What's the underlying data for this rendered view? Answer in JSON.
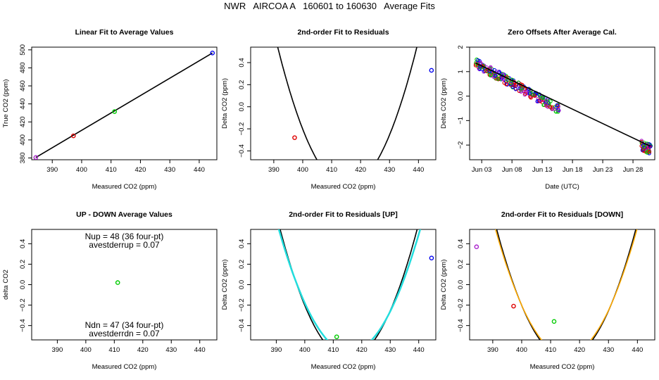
{
  "page_title": "NWR   AIRCOA A   160601 to 160630   Average Fits",
  "colors": {
    "black": "#000000",
    "red": "#dd0000",
    "green": "#00cc00",
    "blue": "#0000ee",
    "purple": "#aa22cc",
    "cyan": "#22dddd",
    "orange": "#ffaa00"
  },
  "chart_data": [
    {
      "id": "p1",
      "type": "scatter",
      "title": "Linear Fit to Average Values",
      "xlabel": "Measured CO2 (ppm)",
      "ylabel": "True CO2 (ppm)",
      "xlim": [
        383,
        446
      ],
      "ylim": [
        378,
        503
      ],
      "xticks": [
        390,
        400,
        410,
        420,
        430,
        440
      ],
      "yticks": [
        380,
        400,
        420,
        440,
        460,
        480,
        500
      ],
      "points": [
        {
          "x": 384.4,
          "y": 380.5,
          "color": "purple"
        },
        {
          "x": 397.2,
          "y": 404.5,
          "color": "red"
        },
        {
          "x": 411.2,
          "y": 431.5,
          "color": "green"
        },
        {
          "x": 444.5,
          "y": 496.5,
          "color": "blue"
        }
      ],
      "lines": [
        {
          "color": "black",
          "points": [
            [
              384.4,
              380.5
            ],
            [
              444.5,
              496.5
            ]
          ]
        }
      ]
    },
    {
      "id": "p2",
      "type": "scatter",
      "title": "2nd-order Fit to Residuals",
      "xlabel": "Measured CO2 (ppm)",
      "ylabel": "Delta CO2 (ppm)",
      "xlim": [
        382,
        446
      ],
      "ylim": [
        -0.48,
        0.54
      ],
      "xticks": [
        390,
        400,
        410,
        420,
        430,
        440
      ],
      "yticks": [
        -0.4,
        -0.2,
        0.0,
        0.2,
        0.4
      ],
      "points": [
        {
          "x": 397.2,
          "y": -0.28,
          "color": "red"
        },
        {
          "x": 444.5,
          "y": 0.33,
          "color": "blue"
        }
      ],
      "curves": [
        {
          "color": "black",
          "a": 0.00218,
          "h": 415.4,
          "k": -0.72,
          "x_range": [
            382,
            444.5
          ]
        }
      ]
    },
    {
      "id": "p3",
      "type": "scatter",
      "title": "Zero Offsets After Average Cal.",
      "xlabel": "Date (UTC)",
      "ylabel": "Delta CO2 (ppm)",
      "xlim": [
        0.0,
        30.6
      ],
      "ylim": [
        -2.6,
        2.0
      ],
      "xticks": [
        2,
        7,
        12,
        17,
        22,
        27
      ],
      "xtick_labels": [
        "Jun 03",
        "Jun 08",
        "Jun 13",
        "Jun 18",
        "Jun 23",
        "Jun 28"
      ],
      "yticks": [
        -2,
        -1,
        0,
        1,
        2
      ],
      "clusters": [
        {
          "x_range": [
            1.0,
            14.8
          ],
          "y_start": 1.35,
          "y_end": -0.55,
          "spread": 0.18,
          "colors": [
            "blue",
            "purple",
            "red",
            "green"
          ],
          "count": 240
        },
        {
          "x_range": [
            28.4,
            30.0
          ],
          "y_start": -2.0,
          "y_end": -2.2,
          "spread": 0.2,
          "colors": [
            "purple",
            "blue",
            "green",
            "red"
          ],
          "count": 60
        }
      ],
      "lines": [
        {
          "color": "black",
          "points": [
            [
              1.0,
              1.35
            ],
            [
              29.9,
              -2.05
            ]
          ]
        }
      ]
    },
    {
      "id": "p4",
      "type": "scatter",
      "title": "UP - DOWN Average Values",
      "xlabel": "Measured CO2 (ppm)",
      "ylabel": "delta CO2",
      "xlim": [
        381,
        446
      ],
      "ylim": [
        -0.54,
        0.54
      ],
      "xticks": [
        390,
        400,
        410,
        420,
        430,
        440
      ],
      "yticks": [
        -0.4,
        -0.2,
        0.0,
        0.2,
        0.4
      ],
      "points": [
        {
          "x": 411.2,
          "y": 0.02,
          "color": "green"
        }
      ],
      "annotations": [
        "Nup = 48 (36 four-pt)",
        "avestderrup =  0.07",
        "Ndn = 47 (34 four-pt)",
        "avestderrdn =  0.07"
      ]
    },
    {
      "id": "p5",
      "type": "scatter",
      "title": "2nd-order Fit to Residuals [UP]",
      "xlabel": "Measured CO2 (ppm)",
      "ylabel": "Delta CO2 (ppm)",
      "xlim": [
        381,
        446
      ],
      "ylim": [
        -0.54,
        0.54
      ],
      "xticks": [
        390,
        400,
        410,
        420,
        430,
        440
      ],
      "yticks": [
        -0.4,
        -0.2,
        0.0,
        0.2,
        0.4
      ],
      "points": [
        {
          "x": 411.2,
          "y": -0.51,
          "color": "green"
        },
        {
          "x": 444.5,
          "y": 0.26,
          "color": "blue"
        }
      ],
      "curves": [
        {
          "color": "black",
          "a": 0.00218,
          "h": 415.4,
          "k": -0.72,
          "x_range": [
            381,
            444.5
          ]
        },
        {
          "color": "cyan",
          "a": 0.00195,
          "h": 415.7,
          "k": -0.66,
          "x_range": [
            382,
            444.5
          ],
          "width": 2.5
        }
      ]
    },
    {
      "id": "p6",
      "type": "scatter",
      "title": "2nd-order Fit to Residuals [DOWN]",
      "xlabel": "Measured CO2 (ppm)",
      "ylabel": "Delta CO2 (ppm)",
      "xlim": [
        382,
        446
      ],
      "ylim": [
        -0.54,
        0.54
      ],
      "xticks": [
        390,
        400,
        410,
        420,
        430,
        440
      ],
      "yticks": [
        -0.4,
        -0.2,
        0.0,
        0.2,
        0.4
      ],
      "points": [
        {
          "x": 384.4,
          "y": 0.37,
          "color": "purple"
        },
        {
          "x": 397.2,
          "y": -0.21,
          "color": "red"
        },
        {
          "x": 411.2,
          "y": -0.36,
          "color": "green"
        }
      ],
      "curves": [
        {
          "color": "black",
          "a": 0.00218,
          "h": 415.4,
          "k": -0.72,
          "x_range": [
            382,
            444.5
          ]
        },
        {
          "color": "orange",
          "a": 0.00206,
          "h": 415.4,
          "k": -0.69,
          "x_range": [
            383,
            444.5
          ],
          "width": 1.6
        }
      ]
    }
  ]
}
